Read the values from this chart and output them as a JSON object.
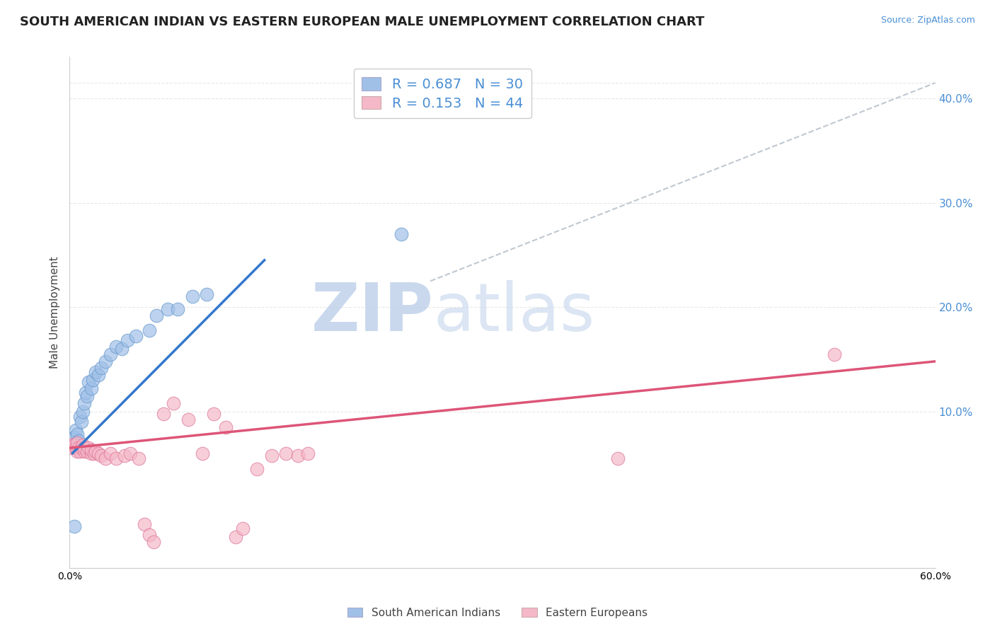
{
  "title": "SOUTH AMERICAN INDIAN VS EASTERN EUROPEAN MALE UNEMPLOYMENT CORRELATION CHART",
  "source_text": "Source: ZipAtlas.com",
  "ylabel": "Male Unemployment",
  "xlim": [
    0.0,
    0.6
  ],
  "ylim": [
    -0.05,
    0.44
  ],
  "plot_ylim": [
    -0.05,
    0.44
  ],
  "xticks": [
    0.0,
    0.1,
    0.2,
    0.3,
    0.4,
    0.5,
    0.6
  ],
  "yticks_right": [
    0.1,
    0.2,
    0.3,
    0.4
  ],
  "ytick_right_labels": [
    "10.0%",
    "20.0%",
    "30.0%",
    "40.0%"
  ],
  "watermark": "ZIPatlas",
  "watermark_color": "#cfe0f5",
  "blue_color": "#a0c0e8",
  "blue_edge": "#6699cc",
  "pink_color": "#f5b8c8",
  "pink_edge": "#dd7799",
  "blue_scatter": [
    [
      0.003,
      0.075
    ],
    [
      0.004,
      0.082
    ],
    [
      0.005,
      0.078
    ],
    [
      0.006,
      0.072
    ],
    [
      0.007,
      0.095
    ],
    [
      0.008,
      0.09
    ],
    [
      0.009,
      0.1
    ],
    [
      0.01,
      0.108
    ],
    [
      0.011,
      0.118
    ],
    [
      0.012,
      0.115
    ],
    [
      0.013,
      0.128
    ],
    [
      0.015,
      0.122
    ],
    [
      0.016,
      0.13
    ],
    [
      0.018,
      0.138
    ],
    [
      0.02,
      0.135
    ],
    [
      0.022,
      0.142
    ],
    [
      0.025,
      0.148
    ],
    [
      0.028,
      0.155
    ],
    [
      0.032,
      0.162
    ],
    [
      0.036,
      0.16
    ],
    [
      0.04,
      0.168
    ],
    [
      0.046,
      0.172
    ],
    [
      0.055,
      0.178
    ],
    [
      0.06,
      0.192
    ],
    [
      0.068,
      0.198
    ],
    [
      0.075,
      0.198
    ],
    [
      0.085,
      0.21
    ],
    [
      0.095,
      0.212
    ],
    [
      0.23,
      0.27
    ],
    [
      0.003,
      -0.01
    ]
  ],
  "pink_scatter": [
    [
      0.001,
      0.068
    ],
    [
      0.002,
      0.065
    ],
    [
      0.003,
      0.068
    ],
    [
      0.004,
      0.065
    ],
    [
      0.005,
      0.062
    ],
    [
      0.005,
      0.07
    ],
    [
      0.006,
      0.065
    ],
    [
      0.007,
      0.062
    ],
    [
      0.008,
      0.065
    ],
    [
      0.009,
      0.068
    ],
    [
      0.01,
      0.062
    ],
    [
      0.01,
      0.065
    ],
    [
      0.012,
      0.062
    ],
    [
      0.013,
      0.065
    ],
    [
      0.015,
      0.06
    ],
    [
      0.015,
      0.063
    ],
    [
      0.017,
      0.06
    ],
    [
      0.018,
      0.062
    ],
    [
      0.02,
      0.06
    ],
    [
      0.022,
      0.058
    ],
    [
      0.025,
      0.055
    ],
    [
      0.028,
      0.06
    ],
    [
      0.032,
      0.055
    ],
    [
      0.038,
      0.058
    ],
    [
      0.042,
      0.06
    ],
    [
      0.048,
      0.055
    ],
    [
      0.052,
      -0.008
    ],
    [
      0.055,
      -0.018
    ],
    [
      0.058,
      -0.025
    ],
    [
      0.065,
      0.098
    ],
    [
      0.072,
      0.108
    ],
    [
      0.082,
      0.092
    ],
    [
      0.092,
      0.06
    ],
    [
      0.1,
      0.098
    ],
    [
      0.108,
      0.085
    ],
    [
      0.115,
      -0.02
    ],
    [
      0.12,
      -0.012
    ],
    [
      0.13,
      0.045
    ],
    [
      0.14,
      0.058
    ],
    [
      0.15,
      0.06
    ],
    [
      0.158,
      0.058
    ],
    [
      0.165,
      0.06
    ],
    [
      0.38,
      0.055
    ],
    [
      0.53,
      0.155
    ]
  ],
  "R_blue": 0.687,
  "N_blue": 30,
  "R_pink": 0.153,
  "N_pink": 44,
  "blue_line_x": [
    0.002,
    0.135
  ],
  "blue_line_y": [
    0.06,
    0.245
  ],
  "pink_line_x": [
    0.0,
    0.6
  ],
  "pink_line_y": [
    0.065,
    0.148
  ],
  "diag_line_x": [
    0.25,
    0.6
  ],
  "diag_line_y": [
    0.225,
    0.415
  ],
  "grid_color": "#e8e8e8",
  "grid_style": "--",
  "background_color": "#ffffff",
  "title_fontsize": 13,
  "axis_label_fontsize": 11,
  "tick_fontsize": 11,
  "marker_size": 180
}
